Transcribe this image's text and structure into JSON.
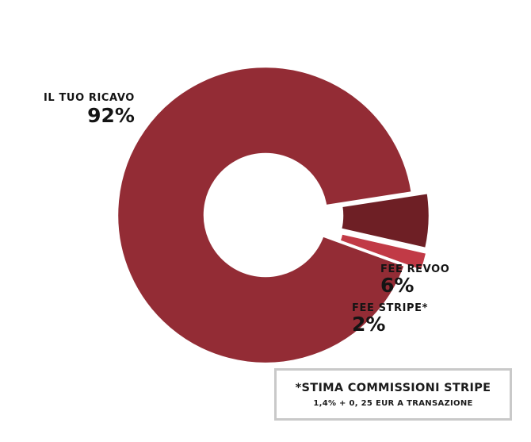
{
  "chart_data": {
    "type": "pie",
    "style": "donut",
    "categories": [
      "IL TUO RICAVO",
      "FEE REVOO",
      "FEE STRIPE*"
    ],
    "values": [
      92,
      6,
      2
    ],
    "value_labels": [
      "92%",
      "6%",
      "2%"
    ],
    "colors": [
      "#932c35",
      "#6e1f25",
      "#c13a46"
    ],
    "title": "",
    "legend": "none"
  },
  "note": {
    "title": "*STIMA COMMISSIONI STRIPE",
    "subtitle": "1,4% + 0, 25 EUR A TRANSAZIONE"
  }
}
